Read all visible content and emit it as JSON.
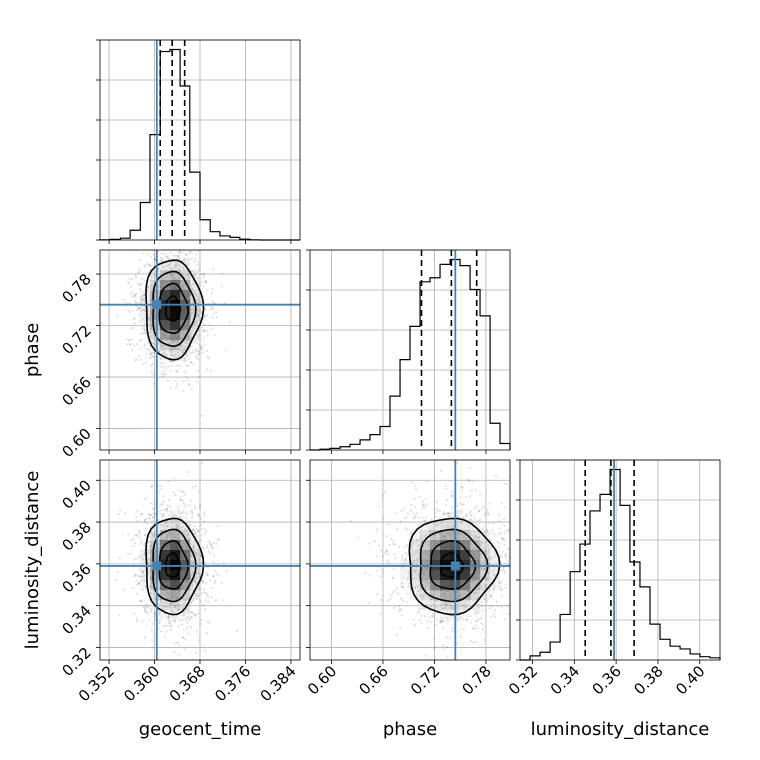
{
  "chart_data": {
    "type": "corner",
    "parameters": [
      "geocent_time",
      "phase",
      "luminosity_distance"
    ],
    "truths": {
      "geocent_time": 0.3604,
      "phase": 0.7443,
      "luminosity_distance": 0.359
    },
    "colors": {
      "truth": "#4682b4",
      "hist": "#000000",
      "grid": "#b0b0b0"
    },
    "grid": true,
    "axes": {
      "geocent_time": {
        "lim": [
          0.3504,
          0.3856
        ],
        "ticks": [
          0.352,
          0.36,
          0.368,
          0.376,
          0.384
        ],
        "tick_labels": [
          "0.352",
          "0.360",
          "0.368",
          "0.376",
          "0.384"
        ],
        "label": "geocent_time"
      },
      "phase": {
        "lim": [
          0.575,
          0.808
        ],
        "ticks": [
          0.6,
          0.66,
          0.72,
          0.78
        ],
        "tick_labels": [
          "0.60",
          "0.66",
          "0.72",
          "0.78"
        ],
        "label": "phase"
      },
      "luminosity_distance": {
        "lim": [
          0.314,
          0.4097
        ],
        "ticks": [
          0.32,
          0.34,
          0.36,
          0.38,
          0.4
        ],
        "tick_labels": [
          "0.32",
          "0.34",
          "0.36",
          "0.38",
          "0.40"
        ],
        "label": "luminosity_distance"
      }
    },
    "histograms": {
      "geocent_time": {
        "edges": [
          0.3504,
          0.3522,
          0.354,
          0.3557,
          0.3575,
          0.3592,
          0.361,
          0.3627,
          0.3645,
          0.3662,
          0.368,
          0.3698,
          0.3715,
          0.3733,
          0.375,
          0.3768,
          0.3785,
          0.3803,
          0.382,
          0.3838,
          0.3856
        ],
        "counts": [
          0.5,
          3,
          9,
          48,
          185,
          520,
          930,
          940,
          760,
          335,
          100,
          41,
          20,
          13,
          4,
          1,
          0,
          0,
          0,
          0
        ],
        "quantiles": [
          0.361,
          0.3631,
          0.3653
        ]
      },
      "phase": {
        "edges": [
          0.575,
          0.5867,
          0.5983,
          0.61,
          0.6216,
          0.6333,
          0.6449,
          0.6566,
          0.6682,
          0.6799,
          0.6915,
          0.7032,
          0.7148,
          0.7265,
          0.7382,
          0.7498,
          0.7615,
          0.7731,
          0.7848,
          0.7964,
          0.808
        ],
        "counts": [
          0,
          2,
          4,
          8,
          14,
          25,
          38,
          58,
          133,
          223,
          305,
          415,
          425,
          458,
          470,
          455,
          396,
          331,
          66,
          16
        ],
        "quantiles": [
          0.7049,
          0.7397,
          0.7692
        ]
      },
      "luminosity_distance": {
        "edges": [
          0.314,
          0.3188,
          0.3236,
          0.3284,
          0.3332,
          0.338,
          0.3427,
          0.3475,
          0.3523,
          0.3571,
          0.3619,
          0.3666,
          0.3714,
          0.3762,
          0.381,
          0.3858,
          0.3906,
          0.3954,
          0.4001,
          0.4049,
          0.4097
        ],
        "counts": [
          0,
          15,
          28,
          65,
          165,
          320,
          420,
          540,
          600,
          690,
          560,
          355,
          265,
          130,
          75,
          50,
          40,
          22,
          12,
          8
        ],
        "quantiles": [
          0.3452,
          0.3575,
          0.3686
        ]
      }
    },
    "pair_panels": [
      {
        "x": "geocent_time",
        "y": "phase",
        "center": [
          0.3632,
          0.7393
        ],
        "sd": [
          0.0025,
          0.029
        ]
      },
      {
        "x": "geocent_time",
        "y": "luminosity_distance",
        "center": [
          0.3632,
          0.3592
        ],
        "sd": [
          0.0025,
          0.0115
        ]
      },
      {
        "x": "phase",
        "y": "luminosity_distance",
        "center": [
          0.7397,
          0.3592
        ],
        "sd": [
          0.026,
          0.0115
        ]
      }
    ],
    "contour_levels": [
      0.5,
      1.0,
      1.5,
      2.0
    ]
  }
}
